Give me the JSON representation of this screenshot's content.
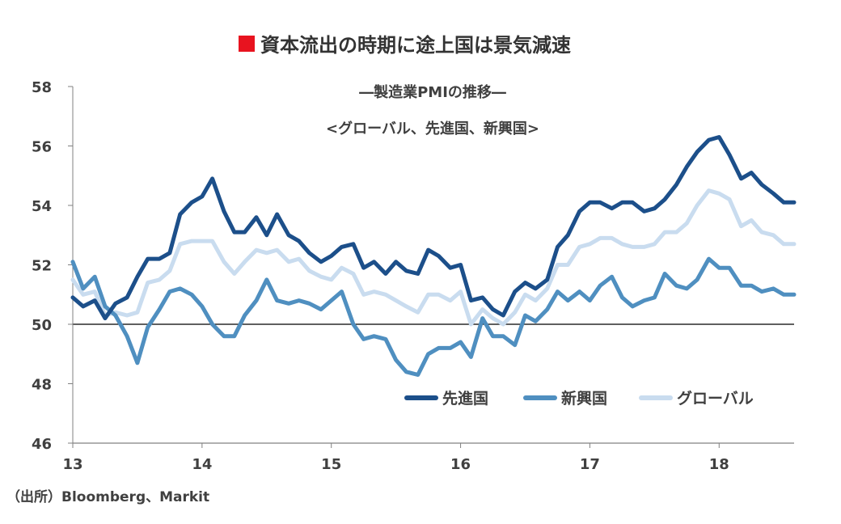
{
  "chart_data": {
    "type": "line",
    "title": "資本流出の時期に途上国は景気減速",
    "title_marker_color": "#e8131f",
    "subtitle1": "―製造業PMIの推移―",
    "subtitle2": "<グローバル、先進国、新興国>",
    "source": "（出所）Bloomberg、Markit",
    "ylim": [
      46,
      58
    ],
    "yticks": [
      "46",
      "48",
      "50",
      "52",
      "54",
      "56",
      "58"
    ],
    "xlim": [
      2013.0,
      2018.58
    ],
    "xticks": [
      {
        "value": 2013,
        "label": "13"
      },
      {
        "value": 2014,
        "label": "14"
      },
      {
        "value": 2015,
        "label": "15"
      },
      {
        "value": 2016,
        "label": "16"
      },
      {
        "value": 2017,
        "label": "17"
      },
      {
        "value": 2018,
        "label": "18"
      }
    ],
    "reference_line": 50,
    "legend_position": "bottom-right",
    "x": [
      2013.0,
      2013.08,
      2013.17,
      2013.25,
      2013.33,
      2013.42,
      2013.5,
      2013.58,
      2013.67,
      2013.75,
      2013.83,
      2013.92,
      2014.0,
      2014.08,
      2014.17,
      2014.25,
      2014.33,
      2014.42,
      2014.5,
      2014.58,
      2014.67,
      2014.75,
      2014.83,
      2014.92,
      2015.0,
      2015.08,
      2015.17,
      2015.25,
      2015.33,
      2015.42,
      2015.5,
      2015.58,
      2015.67,
      2015.75,
      2015.83,
      2015.92,
      2016.0,
      2016.08,
      2016.17,
      2016.25,
      2016.33,
      2016.42,
      2016.5,
      2016.58,
      2016.67,
      2016.75,
      2016.83,
      2016.92,
      2017.0,
      2017.08,
      2017.17,
      2017.25,
      2017.33,
      2017.42,
      2017.5,
      2017.58,
      2017.67,
      2017.75,
      2017.83,
      2017.92,
      2018.0,
      2018.08,
      2018.17,
      2018.25,
      2018.33,
      2018.42,
      2018.5,
      2018.58
    ],
    "series": [
      {
        "name": "先進国",
        "color": "#1c4f8a",
        "values": [
          50.9,
          50.6,
          50.8,
          50.2,
          50.7,
          50.9,
          51.6,
          52.2,
          52.2,
          52.4,
          53.7,
          54.1,
          54.3,
          54.9,
          53.8,
          53.1,
          53.1,
          53.6,
          53.0,
          53.7,
          53.0,
          52.8,
          52.4,
          52.1,
          52.3,
          52.6,
          52.7,
          51.9,
          52.1,
          51.7,
          52.1,
          51.8,
          51.7,
          52.5,
          52.3,
          51.9,
          52.0,
          50.8,
          50.9,
          50.5,
          50.3,
          51.1,
          51.4,
          51.2,
          51.5,
          52.6,
          53.0,
          53.8,
          54.1,
          54.1,
          53.9,
          54.1,
          54.1,
          53.8,
          53.9,
          54.2,
          54.7,
          55.3,
          55.8,
          56.2,
          56.3,
          55.7,
          54.9,
          55.1,
          54.7,
          54.4,
          54.1,
          54.1
        ]
      },
      {
        "name": "新興国",
        "color": "#4f8fc0",
        "values": [
          52.1,
          51.2,
          51.6,
          50.6,
          50.3,
          49.6,
          48.7,
          49.9,
          50.5,
          51.1,
          51.2,
          51.0,
          50.6,
          50.0,
          49.6,
          49.6,
          50.3,
          50.8,
          51.5,
          50.8,
          50.7,
          50.8,
          50.7,
          50.5,
          50.8,
          51.1,
          50.0,
          49.5,
          49.6,
          49.5,
          48.8,
          48.4,
          48.3,
          49.0,
          49.2,
          49.2,
          49.4,
          48.9,
          50.2,
          49.6,
          49.6,
          49.3,
          50.3,
          50.1,
          50.5,
          51.1,
          50.8,
          51.1,
          50.8,
          51.3,
          51.6,
          50.9,
          50.6,
          50.8,
          50.9,
          51.7,
          51.3,
          51.2,
          51.5,
          52.2,
          51.9,
          51.9,
          51.3,
          51.3,
          51.1,
          51.2,
          51.0,
          51.0
        ]
      },
      {
        "name": "グローバル",
        "color": "#c9dcef",
        "values": [
          51.5,
          51.0,
          51.1,
          50.3,
          50.4,
          50.3,
          50.4,
          51.4,
          51.5,
          51.8,
          52.7,
          52.8,
          52.8,
          52.8,
          52.1,
          51.7,
          52.1,
          52.5,
          52.4,
          52.5,
          52.1,
          52.2,
          51.8,
          51.6,
          51.5,
          51.9,
          51.7,
          51.0,
          51.1,
          51.0,
          50.8,
          50.6,
          50.4,
          51.0,
          51.0,
          50.8,
          51.1,
          50.0,
          50.5,
          50.2,
          50.0,
          50.4,
          51.0,
          50.8,
          51.2,
          52.0,
          52.0,
          52.6,
          52.7,
          52.9,
          52.9,
          52.7,
          52.6,
          52.6,
          52.7,
          53.1,
          53.1,
          53.4,
          54.0,
          54.5,
          54.4,
          54.2,
          53.3,
          53.5,
          53.1,
          53.0,
          52.7,
          52.7
        ]
      }
    ]
  }
}
